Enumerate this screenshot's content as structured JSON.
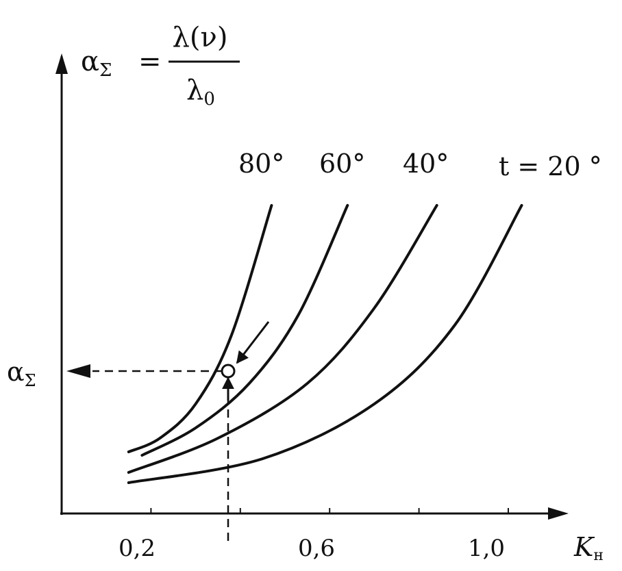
{
  "chart_data": {
    "type": "line",
    "title": "",
    "ylabel": {
      "symbol": "α",
      "subscript": "Σ",
      "equals": "=",
      "numerator": "λ(ν)",
      "denominator_symbol": "λ",
      "denominator_subscript": "0"
    },
    "xlabel": {
      "symbol": "K",
      "subscript": "н"
    },
    "x_ticks": [
      "0,2",
      "0,6",
      "1,0"
    ],
    "xlim": [
      0.0,
      1.2
    ],
    "y_axis_ticks": "none",
    "series": [
      {
        "name": "80°",
        "x": [
          0.15,
          0.22,
          0.3,
          0.38,
          0.47
        ],
        "y": [
          0.18,
          0.22,
          0.32,
          0.52,
          0.9
        ]
      },
      {
        "name": "60°",
        "x": [
          0.18,
          0.3,
          0.42,
          0.53,
          0.64
        ],
        "y": [
          0.17,
          0.25,
          0.38,
          0.58,
          0.9
        ]
      },
      {
        "name": "40°",
        "x": [
          0.15,
          0.35,
          0.55,
          0.7,
          0.84
        ],
        "y": [
          0.12,
          0.22,
          0.38,
          0.6,
          0.9
        ]
      },
      {
        "name": "t = 20 °",
        "x": [
          0.15,
          0.45,
          0.7,
          0.88,
          1.03
        ],
        "y": [
          0.09,
          0.16,
          0.32,
          0.55,
          0.9
        ]
      }
    ],
    "annotation": {
      "marker": {
        "x": 0.4,
        "on_series": "60°"
      },
      "readout_label": {
        "symbol": "α",
        "subscript": "Σ"
      }
    },
    "grid": false,
    "legend": "labels at curve ends"
  }
}
